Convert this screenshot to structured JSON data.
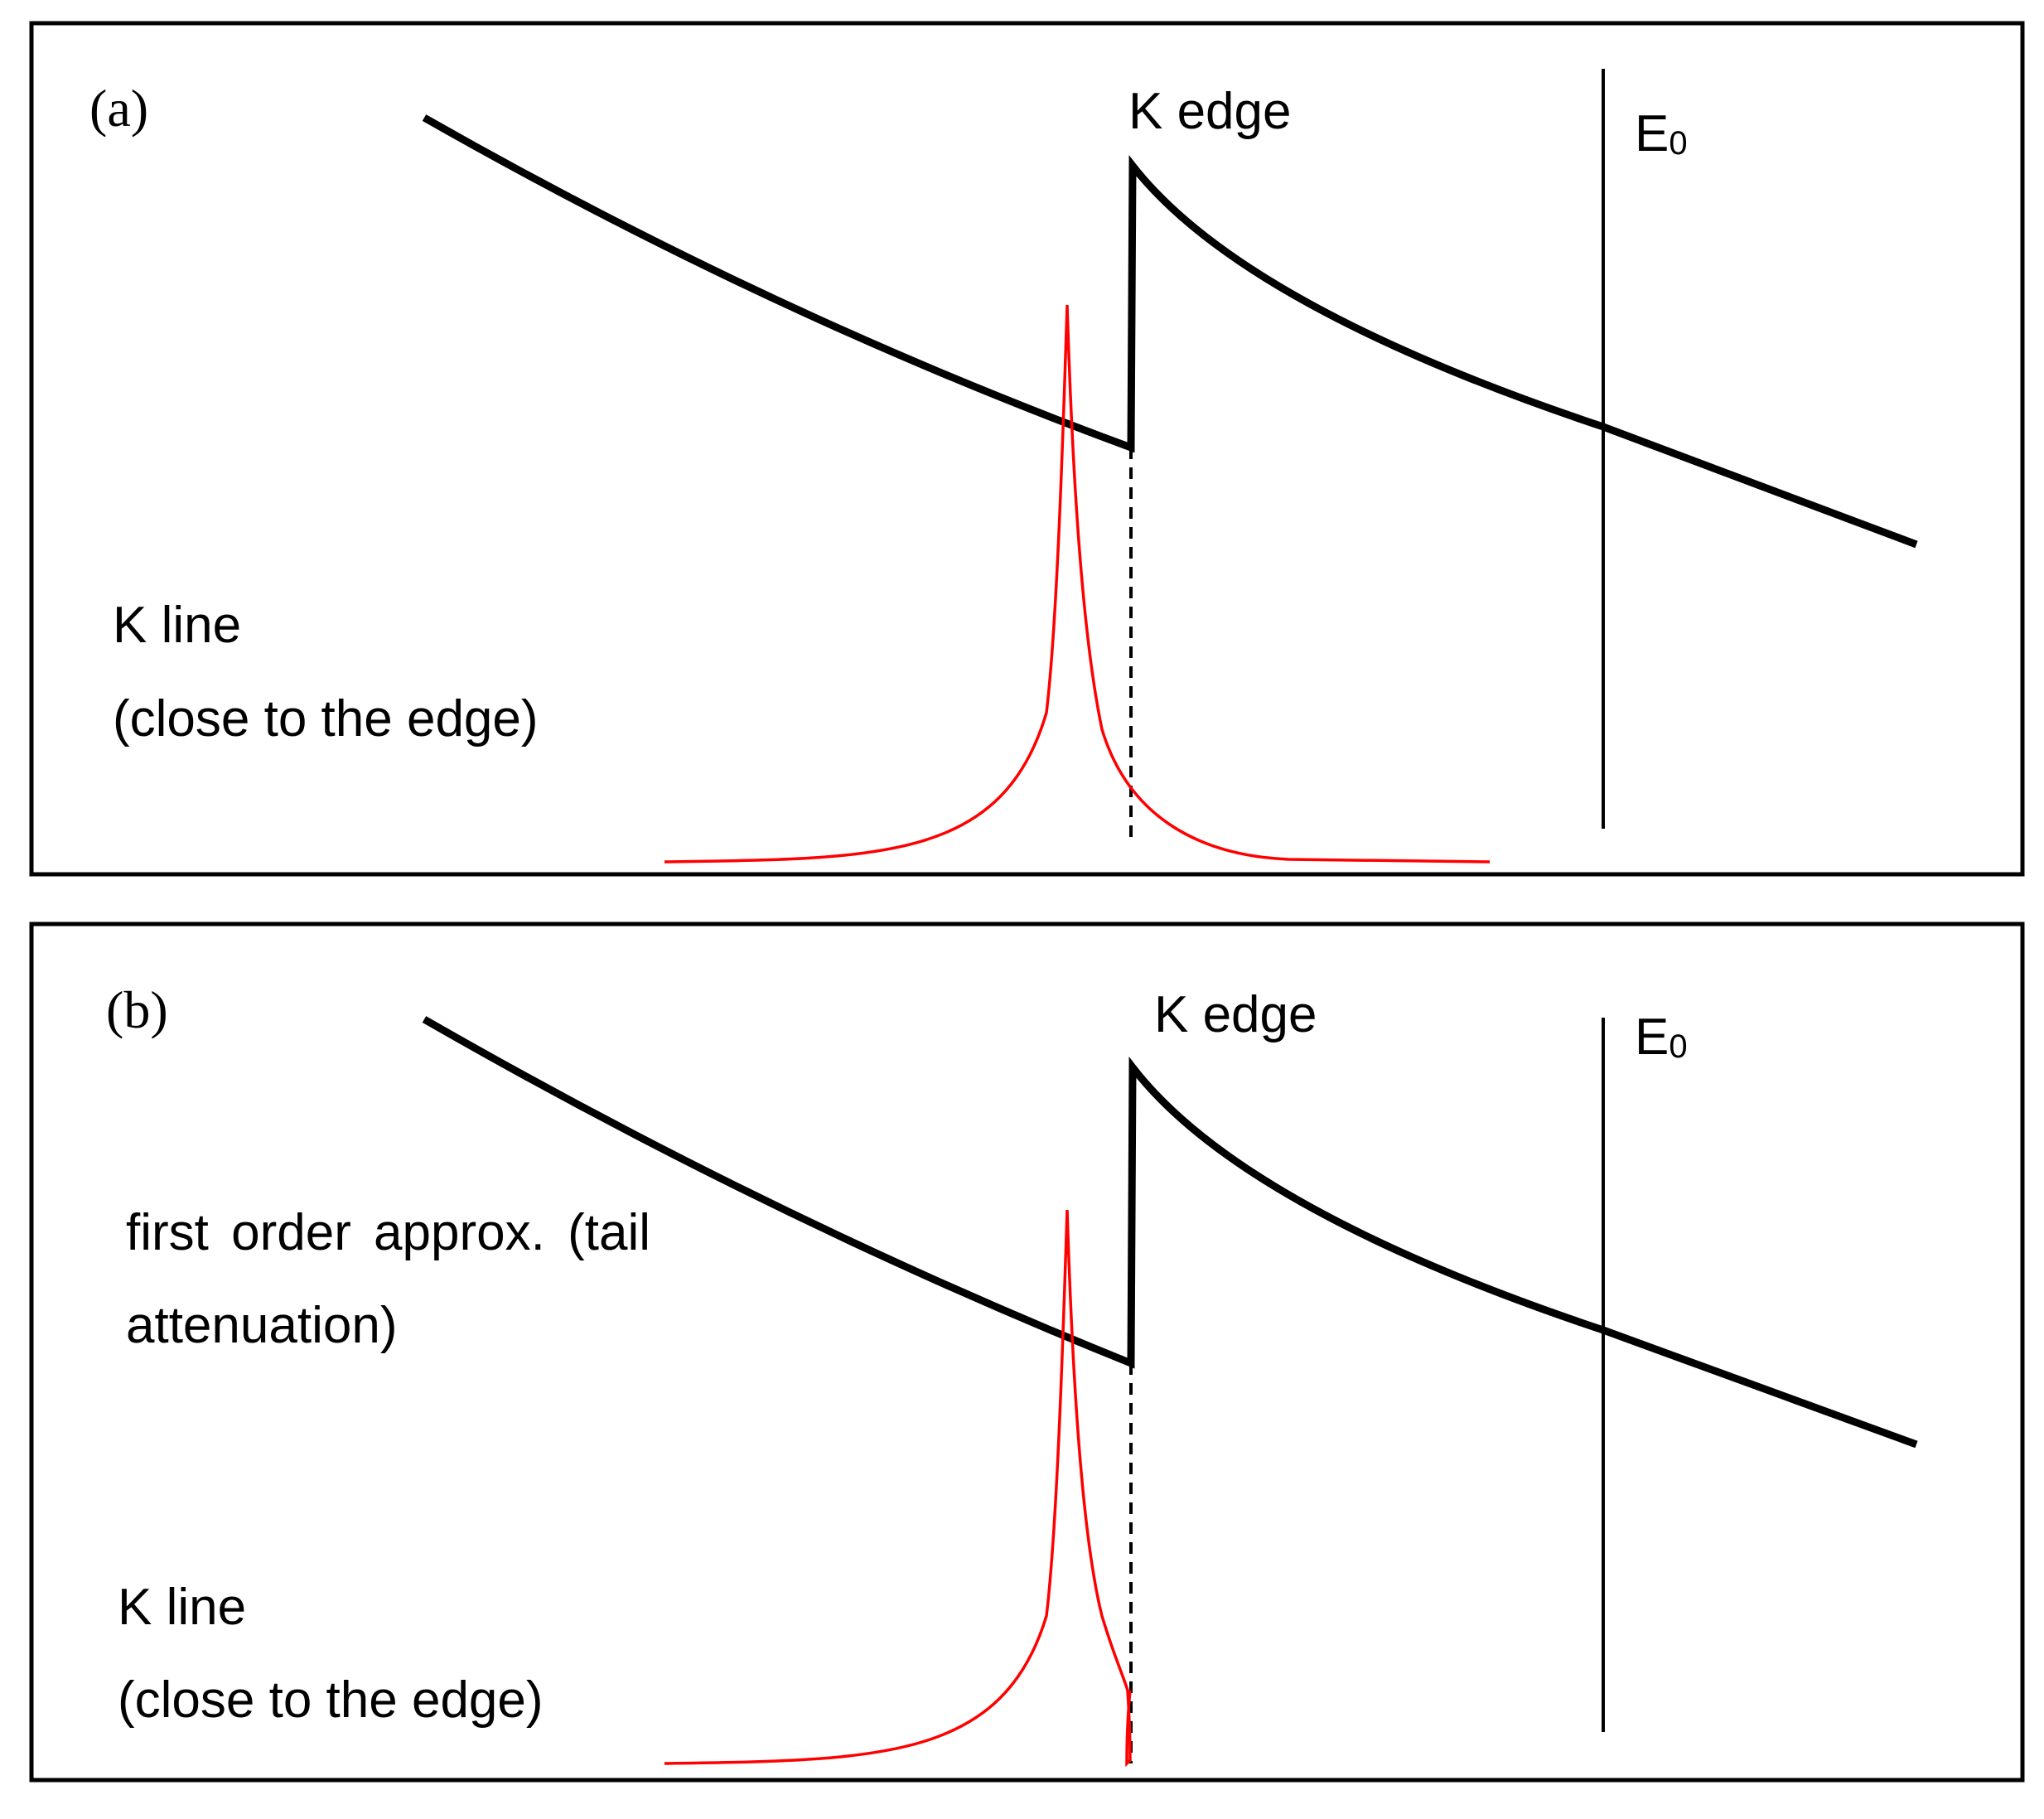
{
  "panels": [
    {
      "id": "a",
      "letter": "(a)",
      "edge_label": "K edge",
      "e0_label": "E",
      "e0_subscript": "0",
      "kline_label_line1": "K line",
      "kline_label_line2": "(close to the edge)",
      "annotation_line1": "",
      "annotation_line2": "",
      "peak_truncated_at_edge": false
    },
    {
      "id": "b",
      "letter": "(b)",
      "edge_label": "K edge",
      "e0_label": "E",
      "e0_subscript": "0",
      "kline_label_line1": "K line",
      "kline_label_line2": "(close to the edge)",
      "annotation_line1": "first order approx. (tail",
      "annotation_line2": "attenuation)",
      "peak_truncated_at_edge": true
    }
  ],
  "colors": {
    "frame": "#000000",
    "absorption_curve": "#000000",
    "k_line_peak": "#ff0000",
    "background": "#ffffff"
  }
}
